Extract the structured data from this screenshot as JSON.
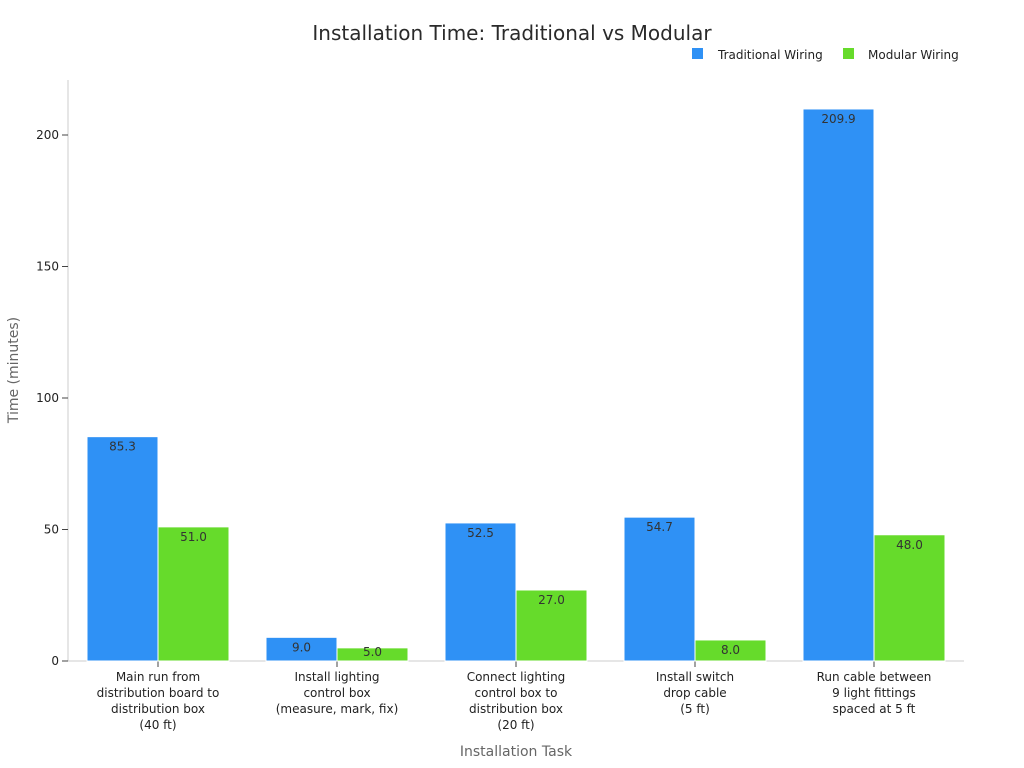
{
  "chart_data": {
    "type": "bar",
    "title": "Installation Time: Traditional vs Modular",
    "xlabel": "Installation Task",
    "ylabel": "Time (minutes)",
    "categories": [
      [
        "Main run from",
        "distribution board to",
        "distribution box",
        "(40 ft)"
      ],
      [
        "Install lighting",
        "control box",
        "(measure, mark, fix)"
      ],
      [
        "Connect lighting",
        "control box to",
        "distribution box",
        "(20 ft)"
      ],
      [
        "Install switch",
        "drop cable",
        "(5 ft)"
      ],
      [
        "Run cable between",
        "9 light fittings",
        "spaced at 5 ft"
      ]
    ],
    "series": [
      {
        "name": "Traditional Wiring",
        "color": "#2f91f5",
        "values": [
          85.3,
          9.0,
          52.5,
          54.7,
          209.9
        ],
        "labels": [
          "85.3",
          "9.0",
          "52.5",
          "54.7",
          "209.9"
        ]
      },
      {
        "name": "Modular Wiring",
        "color": "#66db2b",
        "values": [
          51.0,
          5.0,
          27.0,
          8.0,
          48.0
        ],
        "labels": [
          "51.0",
          "5.0",
          "27.0",
          "8.0",
          "48.0"
        ]
      }
    ],
    "ylim": [
      0,
      220
    ],
    "yticks": [
      0,
      50,
      100,
      150,
      200
    ],
    "grid": false,
    "legend_position": "top-right"
  }
}
